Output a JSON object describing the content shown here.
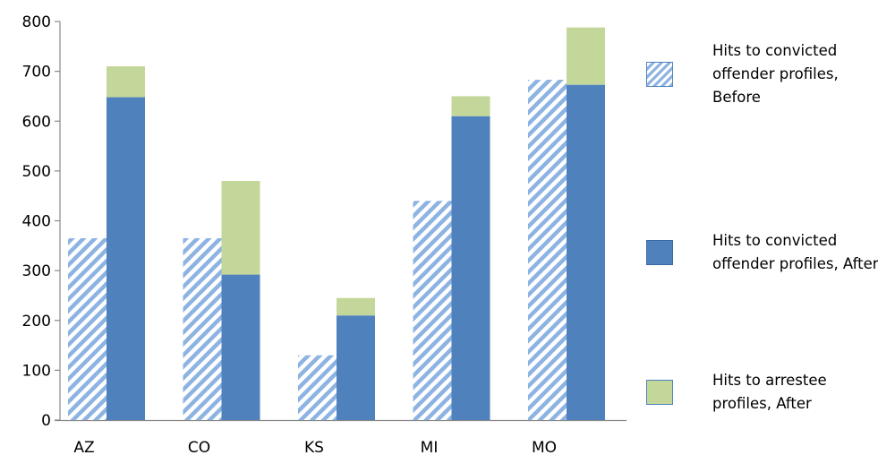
{
  "chart_data": {
    "type": "bar",
    "title": "",
    "xlabel": "",
    "ylabel": "",
    "ylim": [
      0,
      800
    ],
    "yticks": [
      0,
      100,
      200,
      300,
      400,
      500,
      600,
      700,
      800
    ],
    "categories": [
      "AZ",
      "CO",
      "KS",
      "MI",
      "MO"
    ],
    "grid": false,
    "legend_position": "right",
    "series": [
      {
        "name": "Hits to convicted offender profiles, Before",
        "stack": "before",
        "pattern": "diagonal-hatch",
        "color": "#8db3e2",
        "values": [
          365,
          365,
          130,
          440,
          683
        ]
      },
      {
        "name": "Hits to convicted offender profiles, After",
        "stack": "after",
        "color": "#4f81bd",
        "values": [
          648,
          292,
          210,
          610,
          673
        ]
      },
      {
        "name": "Hits to arrestee profiles, After",
        "stack": "after",
        "color": "#c4d79b",
        "values": [
          62,
          188,
          35,
          40,
          115
        ]
      }
    ]
  },
  "legend": {
    "items": [
      {
        "label": "Hits to convicted offender profiles, Before"
      },
      {
        "label": "Hits to convicted offender profiles, After"
      },
      {
        "label": "Hits to arrestee profiles, After"
      }
    ]
  }
}
